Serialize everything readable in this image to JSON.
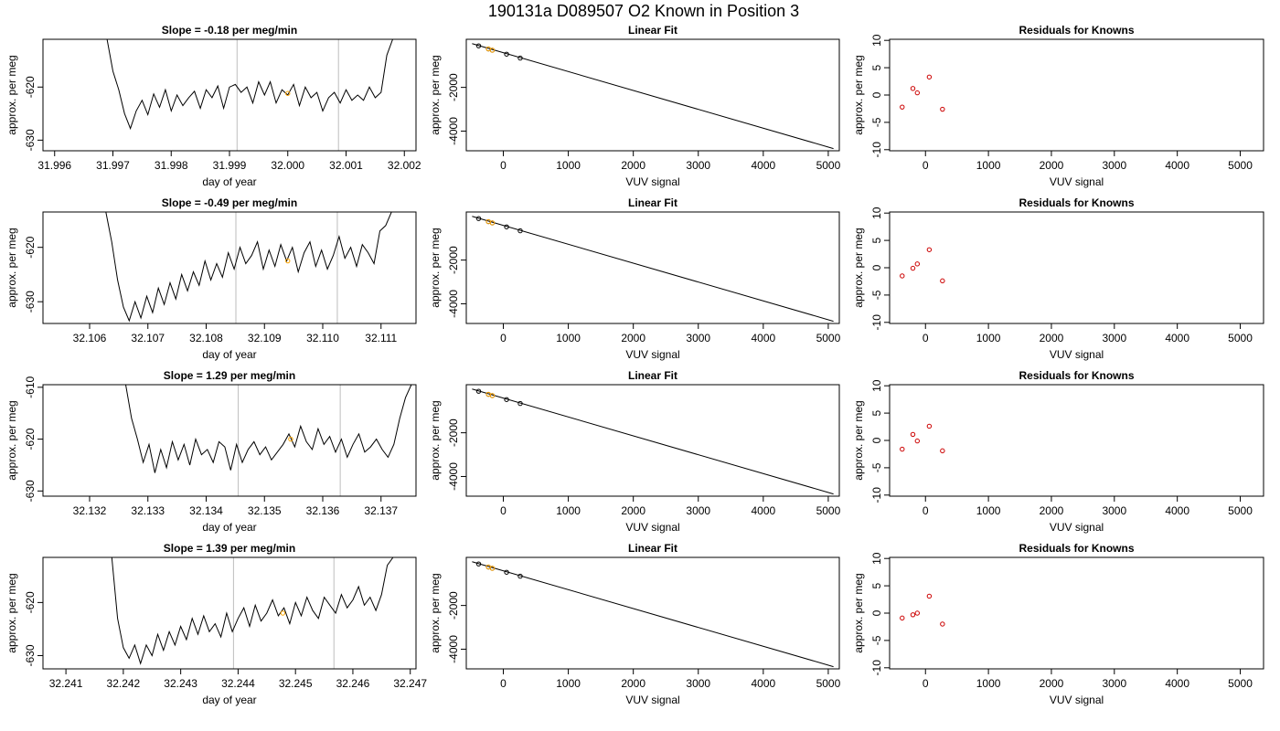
{
  "suptitle": "190131a     D089507   O2 Known in Position  3",
  "colors": {
    "trace": "#000000",
    "highlight": "#ffa500",
    "residual": "#cc0000",
    "vline": "#bebebe"
  },
  "chart_data": [
    {
      "panel": "trace",
      "type": "line",
      "title": "Slope =  -0.18  per meg/min",
      "xlabel": "day of year",
      "ylabel": "approx. per meg",
      "xlim": [
        31.9958,
        32.0022
      ],
      "ylim": [
        -632.0,
        -611.0
      ],
      "xticks": [
        "31.996",
        "31.997",
        "31.998",
        "31.999",
        "32.000",
        "32.001",
        "32.002"
      ],
      "yticks": [
        "-620",
        "-630"
      ],
      "vlines": [
        31.99913,
        32.00087
      ],
      "highlight": [
        [
          32.0,
          -621.2
        ]
      ],
      "x": [
        31.9969,
        31.997,
        31.9971,
        31.9972,
        31.9973,
        31.9974,
        31.9975,
        31.9976,
        31.9977,
        31.9978,
        31.9979,
        31.998,
        31.9981,
        31.9982,
        31.9983,
        31.9984,
        31.9985,
        31.9986,
        31.9987,
        31.9988,
        31.9989,
        31.999,
        31.9991,
        31.9992,
        31.9993,
        31.9994,
        31.9995,
        31.9996,
        31.9997,
        31.9998,
        31.9999,
        32.0,
        32.0001,
        32.0002,
        32.0003,
        32.0004,
        32.0005,
        32.0006,
        32.0007,
        32.0008,
        32.0009,
        32.001,
        32.0011,
        32.0012,
        32.0013,
        32.0014,
        32.0015,
        32.0016,
        32.0017,
        32.0018
      ],
      "y": [
        -611.0,
        -617.0,
        -620.5,
        -625.0,
        -627.8,
        -624.5,
        -622.5,
        -625.2,
        -621.3,
        -623.8,
        -620.5,
        -624.5,
        -621.5,
        -623.5,
        -622.0,
        -620.8,
        -624.0,
        -620.5,
        -622.0,
        -619.8,
        -624.0,
        -620.0,
        -619.5,
        -621.0,
        -620.0,
        -623.0,
        -619.0,
        -621.5,
        -619.0,
        -623.0,
        -620.5,
        -621.5,
        -619.5,
        -623.5,
        -620.0,
        -622.0,
        -621.0,
        -624.5,
        -622.0,
        -621.0,
        -623.0,
        -620.5,
        -622.5,
        -621.5,
        -622.5,
        -620.0,
        -622.0,
        -621.0,
        -614.0,
        -611.0
      ]
    },
    {
      "panel": "fit",
      "type": "line",
      "title": "Linear Fit",
      "xlabel": "VUV signal",
      "ylabel": "approx. per meg",
      "xlim": [
        -570,
        5170
      ],
      "ylim": [
        -4900,
        200
      ],
      "xticks": [
        0,
        1000,
        2000,
        3000,
        4000,
        5000
      ],
      "yticks": [
        -2000,
        -4000
      ],
      "line": [
        [
          -480,
          0
        ],
        [
          5080,
          -4800
        ]
      ],
      "points": [
        [
          -380,
          -100
        ],
        [
          -230,
          -240
        ],
        [
          -170,
          -300
        ],
        [
          50,
          -480
        ],
        [
          260,
          -660
        ]
      ],
      "highlight_points": [
        [
          -230,
          -240
        ],
        [
          -170,
          -300
        ]
      ]
    },
    {
      "panel": "residuals",
      "type": "scatter",
      "title": "Residuals for Knowns",
      "xlabel": "VUV signal",
      "ylabel": "approx. per meg",
      "xlim": [
        -570,
        5370
      ],
      "ylim": [
        -10.2,
        10.2
      ],
      "xticks": [
        0,
        1000,
        2000,
        3000,
        4000,
        5000
      ],
      "yticks": [
        10,
        5,
        0,
        -5,
        -10
      ],
      "points": [
        [
          -370,
          -2.2
        ],
        [
          -200,
          1.2
        ],
        [
          -130,
          0.4
        ],
        [
          60,
          3.3
        ],
        [
          270,
          -2.6
        ]
      ]
    },
    {
      "panel": "trace",
      "type": "line",
      "title": "Slope =  -0.49  per meg/min",
      "xlabel": "day of year",
      "ylabel": "approx. per meg",
      "xlim": [
        32.1052,
        32.1116
      ],
      "ylim": [
        -634.0,
        -613.5
      ],
      "xticks": [
        "32.106",
        "32.107",
        "32.108",
        "32.109",
        "32.110",
        "32.111"
      ],
      "yticks": [
        "-620",
        "-630"
      ],
      "vlines": [
        32.10851,
        32.11025
      ],
      "highlight": [
        [
          32.1094,
          -622.5
        ]
      ],
      "x": [
        32.10628,
        32.10638,
        32.10648,
        32.10658,
        32.10668,
        32.10678,
        32.10688,
        32.10698,
        32.10708,
        32.10718,
        32.10728,
        32.10738,
        32.10748,
        32.10758,
        32.10768,
        32.10778,
        32.10788,
        32.10798,
        32.10808,
        32.10818,
        32.10828,
        32.10838,
        32.10848,
        32.10858,
        32.10868,
        32.10878,
        32.10888,
        32.10898,
        32.10908,
        32.10918,
        32.10928,
        32.10938,
        32.10948,
        32.10958,
        32.10968,
        32.10978,
        32.10988,
        32.10998,
        32.11008,
        32.11018,
        32.11028,
        32.11038,
        32.11048,
        32.11058,
        32.11068,
        32.11078,
        32.11088,
        32.11098,
        32.11108,
        32.11118
      ],
      "y": [
        -613.5,
        -619.0,
        -626.0,
        -631.0,
        -633.5,
        -630.0,
        -633.0,
        -629.0,
        -632.0,
        -627.5,
        -630.5,
        -626.5,
        -629.5,
        -625.0,
        -628.0,
        -624.5,
        -627.0,
        -622.5,
        -626.0,
        -623.0,
        -625.5,
        -621.0,
        -624.0,
        -620.0,
        -623.0,
        -621.5,
        -619.0,
        -624.0,
        -620.5,
        -623.5,
        -619.5,
        -622.5,
        -620.0,
        -624.5,
        -621.0,
        -619.0,
        -623.5,
        -620.5,
        -624.0,
        -621.5,
        -618.0,
        -622.0,
        -620.0,
        -623.5,
        -619.5,
        -621.0,
        -623.0,
        -617.0,
        -616.0,
        -613.5
      ]
    },
    {
      "panel": "fit",
      "type": "line",
      "title": "Linear Fit",
      "xlabel": "VUV signal",
      "ylabel": "approx. per meg",
      "xlim": [
        -570,
        5170
      ],
      "ylim": [
        -4900,
        200
      ],
      "xticks": [
        0,
        1000,
        2000,
        3000,
        4000,
        5000
      ],
      "yticks": [
        -2000,
        -4000
      ],
      "line": [
        [
          -480,
          0
        ],
        [
          5080,
          -4800
        ]
      ],
      "points": [
        [
          -380,
          -100
        ],
        [
          -230,
          -240
        ],
        [
          -170,
          -300
        ],
        [
          50,
          -480
        ],
        [
          260,
          -660
        ]
      ],
      "highlight_points": [
        [
          -230,
          -240
        ],
        [
          -170,
          -300
        ]
      ]
    },
    {
      "panel": "residuals",
      "type": "scatter",
      "title": "Residuals for Knowns",
      "xlabel": "VUV signal",
      "ylabel": "approx. per meg",
      "xlim": [
        -570,
        5370
      ],
      "ylim": [
        -10.2,
        10.2
      ],
      "xticks": [
        0,
        1000,
        2000,
        3000,
        4000,
        5000
      ],
      "yticks": [
        10,
        5,
        0,
        -5,
        -10
      ],
      "points": [
        [
          -370,
          -1.5
        ],
        [
          -200,
          -0.1
        ],
        [
          -130,
          0.7
        ],
        [
          60,
          3.3
        ],
        [
          270,
          -2.4
        ]
      ]
    },
    {
      "panel": "trace",
      "type": "line",
      "title": "Slope =  1.29  per meg/min",
      "xlabel": "day of year",
      "ylabel": "approx. per meg",
      "xlim": [
        32.1312,
        32.1376
      ],
      "ylim": [
        -631.0,
        -609.5
      ],
      "xticks": [
        "32.132",
        "32.133",
        "32.134",
        "32.135",
        "32.136",
        "32.137"
      ],
      "yticks": [
        "-610",
        "-620",
        "-630"
      ],
      "vlines": [
        32.13455,
        32.1363
      ],
      "highlight": [
        [
          32.13545,
          -620.0
        ]
      ],
      "x": [
        32.13262,
        32.13272,
        32.13282,
        32.13292,
        32.13302,
        32.13312,
        32.13322,
        32.13332,
        32.13342,
        32.13352,
        32.13362,
        32.13372,
        32.13382,
        32.13392,
        32.13402,
        32.13412,
        32.13422,
        32.13432,
        32.13442,
        32.13452,
        32.13462,
        32.13472,
        32.13482,
        32.13492,
        32.13502,
        32.13512,
        32.13522,
        32.13532,
        32.13542,
        32.13552,
        32.13562,
        32.13572,
        32.13582,
        32.13592,
        32.13602,
        32.13612,
        32.13622,
        32.13632,
        32.13642,
        32.13652,
        32.13662,
        32.13672,
        32.13682,
        32.13692,
        32.13702,
        32.13712,
        32.13722,
        32.13732,
        32.13742,
        32.13752
      ],
      "y": [
        -609.5,
        -616.0,
        -620.0,
        -624.5,
        -621.0,
        -626.5,
        -622.0,
        -625.5,
        -620.5,
        -624.0,
        -621.0,
        -625.0,
        -620.0,
        -623.0,
        -622.0,
        -624.5,
        -620.5,
        -621.5,
        -626.0,
        -621.0,
        -624.5,
        -622.0,
        -620.5,
        -623.0,
        -621.5,
        -624.0,
        -622.5,
        -621.0,
        -619.0,
        -621.5,
        -617.5,
        -620.5,
        -622.0,
        -618.0,
        -621.0,
        -619.5,
        -622.5,
        -620.0,
        -623.5,
        -621.0,
        -619.0,
        -622.5,
        -621.5,
        -620.0,
        -622.0,
        -623.5,
        -621.0,
        -616.0,
        -612.0,
        -609.5
      ]
    },
    {
      "panel": "fit",
      "type": "line",
      "title": "Linear Fit",
      "xlabel": "VUV signal",
      "ylabel": "approx. per meg",
      "xlim": [
        -570,
        5170
      ],
      "ylim": [
        -4900,
        200
      ],
      "xticks": [
        0,
        1000,
        2000,
        3000,
        4000,
        5000
      ],
      "yticks": [
        -2000,
        -4000
      ],
      "line": [
        [
          -480,
          0
        ],
        [
          5080,
          -4800
        ]
      ],
      "points": [
        [
          -380,
          -100
        ],
        [
          -230,
          -240
        ],
        [
          -170,
          -300
        ],
        [
          50,
          -480
        ],
        [
          260,
          -660
        ]
      ],
      "highlight_points": [
        [
          -230,
          -240
        ],
        [
          -170,
          -300
        ]
      ]
    },
    {
      "panel": "residuals",
      "type": "scatter",
      "title": "Residuals for Knowns",
      "xlabel": "VUV signal",
      "ylabel": "approx. per meg",
      "xlim": [
        -570,
        5370
      ],
      "ylim": [
        -10.2,
        10.2
      ],
      "xticks": [
        0,
        1000,
        2000,
        3000,
        4000,
        5000
      ],
      "yticks": [
        10,
        5,
        0,
        -5,
        -10
      ],
      "points": [
        [
          -370,
          -1.6
        ],
        [
          -200,
          1.1
        ],
        [
          -130,
          -0.1
        ],
        [
          60,
          2.6
        ],
        [
          270,
          -1.9
        ]
      ]
    },
    {
      "panel": "trace",
      "type": "line",
      "title": "Slope =  1.39  per meg/min",
      "xlabel": "day of year",
      "ylabel": "approx. per meg",
      "xlim": [
        32.2406,
        32.2471
      ],
      "ylim": [
        -632.5,
        -611.5
      ],
      "xticks": [
        "32.241",
        "32.242",
        "32.243",
        "32.244",
        "32.245",
        "32.246",
        "32.247"
      ],
      "yticks": [
        "-620",
        "-630"
      ],
      "vlines": [
        32.24392,
        32.24567
      ],
      "highlight": [
        [
          32.24478,
          -622.0
        ]
      ],
      "x": [
        32.2418,
        32.2419,
        32.242,
        32.2421,
        32.2422,
        32.2423,
        32.2424,
        32.2425,
        32.2426,
        32.2427,
        32.2428,
        32.2429,
        32.243,
        32.2431,
        32.2432,
        32.2433,
        32.2434,
        32.2435,
        32.2436,
        32.2437,
        32.2438,
        32.2439,
        32.244,
        32.2441,
        32.2442,
        32.2443,
        32.2444,
        32.2445,
        32.2446,
        32.2447,
        32.2448,
        32.2449,
        32.245,
        32.2451,
        32.2452,
        32.2453,
        32.2454,
        32.2455,
        32.2456,
        32.2457,
        32.2458,
        32.2459,
        32.246,
        32.2461,
        32.2462,
        32.2463,
        32.2464,
        32.2465,
        32.2466,
        32.2467
      ],
      "y": [
        -611.5,
        -623.0,
        -628.5,
        -630.5,
        -628.0,
        -631.5,
        -628.0,
        -630.0,
        -626.0,
        -629.0,
        -625.5,
        -628.0,
        -624.5,
        -627.0,
        -623.0,
        -626.0,
        -622.5,
        -625.5,
        -624.0,
        -626.5,
        -622.0,
        -625.5,
        -623.0,
        -621.0,
        -624.5,
        -620.5,
        -623.5,
        -622.0,
        -619.5,
        -622.5,
        -621.0,
        -624.0,
        -620.0,
        -622.5,
        -619.0,
        -621.5,
        -623.0,
        -619.0,
        -620.5,
        -622.0,
        -618.5,
        -621.0,
        -619.5,
        -617.0,
        -620.5,
        -619.0,
        -621.5,
        -618.5,
        -613.0,
        -611.5
      ]
    },
    {
      "panel": "fit",
      "type": "line",
      "title": "Linear Fit",
      "xlabel": "VUV signal",
      "ylabel": "approx. per meg",
      "xlim": [
        -570,
        5170
      ],
      "ylim": [
        -4900,
        200
      ],
      "xticks": [
        0,
        1000,
        2000,
        3000,
        4000,
        5000
      ],
      "yticks": [
        -2000,
        -4000
      ],
      "line": [
        [
          -480,
          0
        ],
        [
          5080,
          -4800
        ]
      ],
      "points": [
        [
          -380,
          -100
        ],
        [
          -230,
          -240
        ],
        [
          -170,
          -300
        ],
        [
          50,
          -480
        ],
        [
          260,
          -660
        ]
      ],
      "highlight_points": [
        [
          -230,
          -240
        ],
        [
          -170,
          -300
        ]
      ]
    },
    {
      "panel": "residuals",
      "type": "scatter",
      "title": "Residuals for Knowns",
      "xlabel": "VUV signal",
      "ylabel": "approx. per meg",
      "xlim": [
        -570,
        5370
      ],
      "ylim": [
        -10.2,
        10.2
      ],
      "xticks": [
        0,
        1000,
        2000,
        3000,
        4000,
        5000
      ],
      "yticks": [
        10,
        5,
        0,
        -5,
        -10
      ],
      "points": [
        [
          -370,
          -0.9
        ],
        [
          -200,
          -0.3
        ],
        [
          -130,
          0.0
        ],
        [
          60,
          3.1
        ],
        [
          270,
          -2.0
        ]
      ]
    }
  ]
}
